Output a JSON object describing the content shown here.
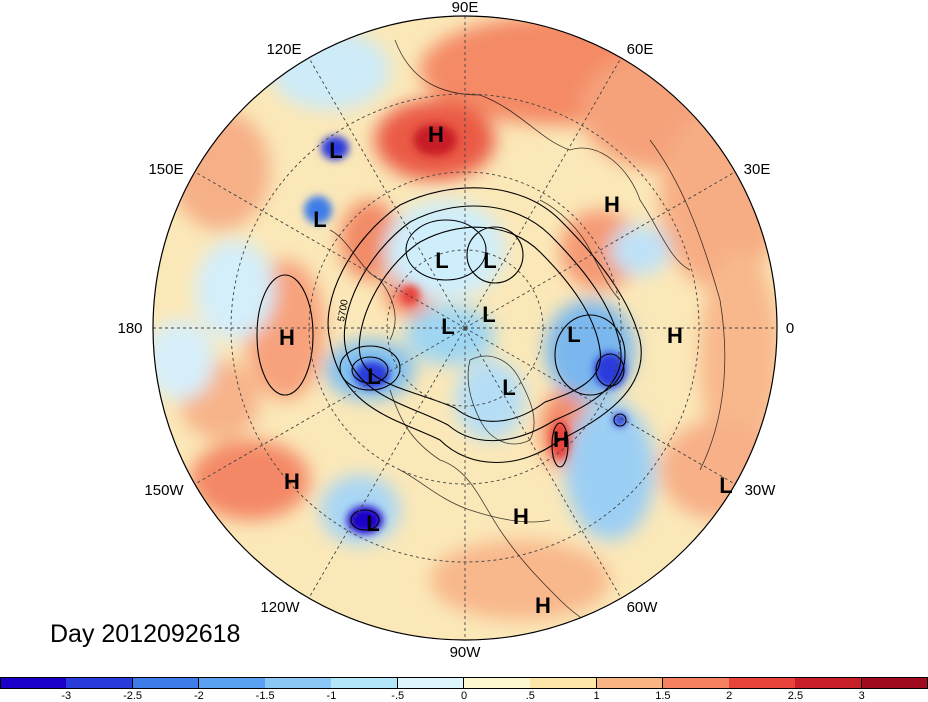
{
  "map": {
    "projection": "north-polar-stereographic",
    "longitude_labels": [
      "90E",
      "60E",
      "30E",
      "0",
      "30W",
      "60W",
      "90W",
      "120W",
      "150W",
      "180",
      "150E",
      "120E"
    ],
    "contour_label": "5700",
    "pressure_centers": [
      {
        "type": "H"
      },
      {
        "type": "L"
      },
      {
        "type": "L"
      },
      {
        "type": "H"
      },
      {
        "type": "L"
      },
      {
        "type": "L"
      },
      {
        "type": "H"
      },
      {
        "type": "L"
      },
      {
        "type": "L"
      },
      {
        "type": "L"
      },
      {
        "type": "H"
      },
      {
        "type": "L"
      },
      {
        "type": "L"
      },
      {
        "type": "H"
      },
      {
        "type": "H"
      },
      {
        "type": "L"
      },
      {
        "type": "H"
      },
      {
        "type": "L"
      },
      {
        "type": "H"
      }
    ]
  },
  "title": "Day 2012092618",
  "colorbar": {
    "tick_labels": [
      "-3",
      "-2.5",
      "-2",
      "-1.5",
      "-1",
      "-.5",
      "0",
      ".5",
      "1",
      "1.5",
      "2",
      "2.5",
      "3"
    ],
    "colors": [
      "#1a00c8",
      "#2a3bdc",
      "#3e7de8",
      "#5aa0f0",
      "#8cc8f5",
      "#b4e6fa",
      "#ddf5fc",
      "#fcf8d2",
      "#fce6a8",
      "#f8b482",
      "#f48060",
      "#e8433a",
      "#c81e28",
      "#a00a1e"
    ]
  }
}
